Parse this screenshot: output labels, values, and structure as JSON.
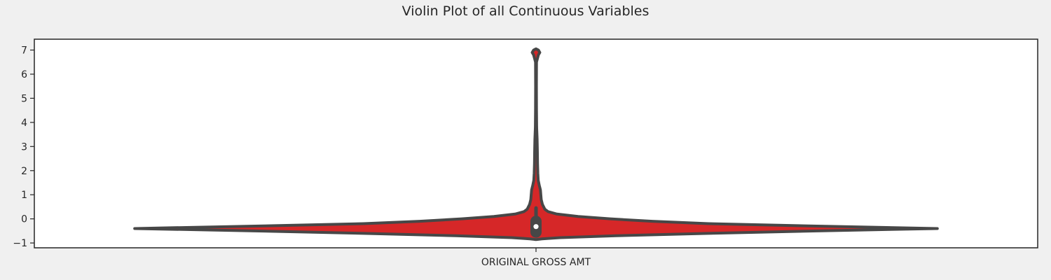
{
  "chart_data": {
    "type": "violin",
    "title": "Violin Plot of all Continuous Variables",
    "xlabel": "",
    "ylabel": "",
    "categories": [
      "ORIGINAL GROSS AMT"
    ],
    "y_ticks": [
      -1,
      0,
      1,
      2,
      3,
      4,
      5,
      6,
      7
    ],
    "ylim": [
      -1.2,
      7.45
    ],
    "grid": false,
    "colors": {
      "fill": "#d62728",
      "outline": "#474747",
      "figure_background": "#f0f0f0",
      "axes_background": "#ffffff"
    },
    "violins": [
      {
        "category": "ORIGINAL GROSS AMT",
        "density_profile": [
          {
            "y": -0.86,
            "w": 0.0
          },
          {
            "y": -0.83,
            "w": 0.015
          },
          {
            "y": -0.78,
            "w": 0.06
          },
          {
            "y": -0.7,
            "w": 0.2
          },
          {
            "y": -0.6,
            "w": 0.43
          },
          {
            "y": -0.5,
            "w": 0.7
          },
          {
            "y": -0.4,
            "w": 1.0
          },
          {
            "y": -0.3,
            "w": 0.7
          },
          {
            "y": -0.2,
            "w": 0.43
          },
          {
            "y": -0.1,
            "w": 0.29
          },
          {
            "y": 0.0,
            "w": 0.185
          },
          {
            "y": 0.1,
            "w": 0.105
          },
          {
            "y": 0.2,
            "w": 0.052
          },
          {
            "y": 0.3,
            "w": 0.03
          },
          {
            "y": 0.4,
            "w": 0.022
          },
          {
            "y": 0.6,
            "w": 0.016
          },
          {
            "y": 0.8,
            "w": 0.013
          },
          {
            "y": 1.0,
            "w": 0.012
          },
          {
            "y": 1.2,
            "w": 0.011
          },
          {
            "y": 1.4,
            "w": 0.008
          },
          {
            "y": 1.6,
            "w": 0.0055
          },
          {
            "y": 1.9,
            "w": 0.0045
          },
          {
            "y": 2.3,
            "w": 0.0038
          },
          {
            "y": 2.8,
            "w": 0.0034
          },
          {
            "y": 3.3,
            "w": 0.0028
          },
          {
            "y": 3.8,
            "w": 0.0016
          },
          {
            "y": 4.5,
            "w": 0.0012
          },
          {
            "y": 5.5,
            "w": 0.001
          },
          {
            "y": 6.5,
            "w": 0.0012
          },
          {
            "y": 6.8,
            "w": 0.006
          },
          {
            "y": 6.9,
            "w": 0.0095
          },
          {
            "y": 7.0,
            "w": 0.006
          },
          {
            "y": 7.05,
            "w": 0.0
          }
        ],
        "box": {
          "q1": -0.55,
          "q3": -0.1,
          "median": -0.32,
          "whisker_low": -0.6,
          "whisker_high": 0.45
        }
      }
    ]
  }
}
